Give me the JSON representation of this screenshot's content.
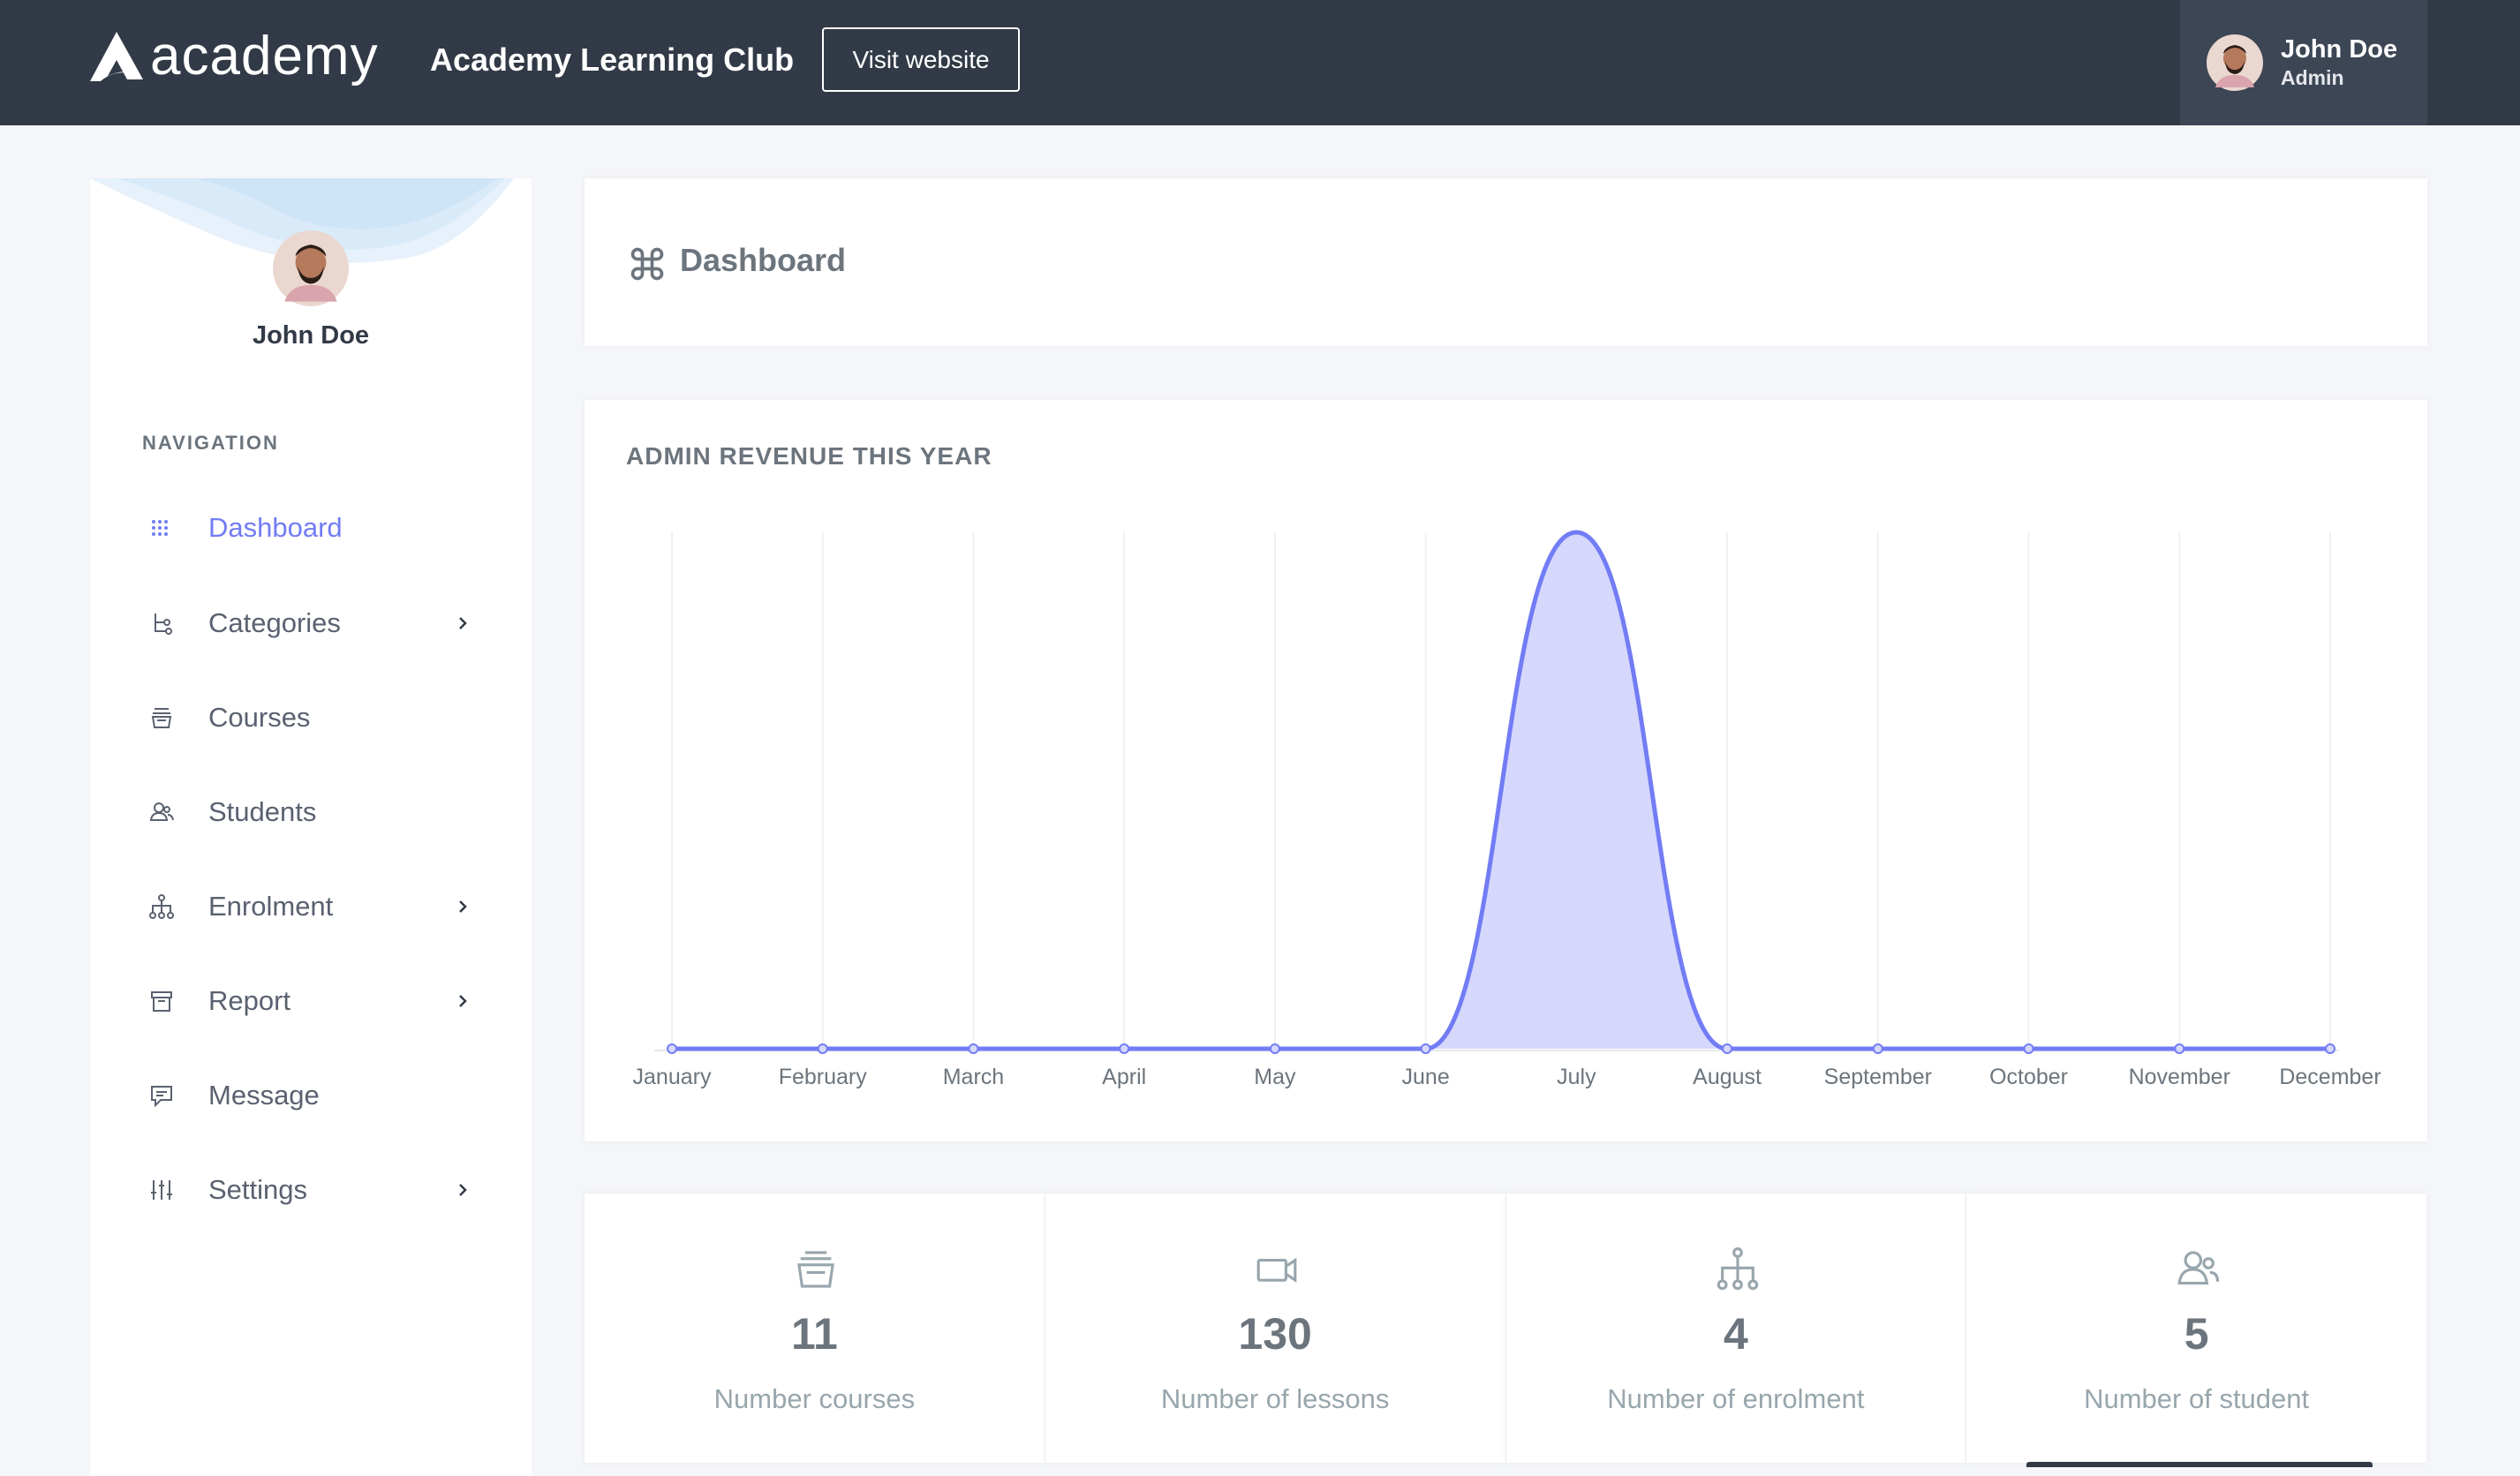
{
  "header": {
    "logo_text": "academy",
    "site_name": "Academy Learning Club",
    "visit_button": "Visit website",
    "user": {
      "name": "John Doe",
      "role": "Admin"
    }
  },
  "sidebar": {
    "user_name": "John Doe",
    "nav_title": "NAVIGATION",
    "items": [
      {
        "label": "Dashboard",
        "icon": "grid-dots-icon",
        "active": true,
        "has_children": false
      },
      {
        "label": "Categories",
        "icon": "hierarchy-icon",
        "active": false,
        "has_children": true
      },
      {
        "label": "Courses",
        "icon": "archive-icon",
        "active": false,
        "has_children": false
      },
      {
        "label": "Students",
        "icon": "users-icon",
        "active": false,
        "has_children": false
      },
      {
        "label": "Enrolment",
        "icon": "network-icon",
        "active": false,
        "has_children": true
      },
      {
        "label": "Report",
        "icon": "box-icon",
        "active": false,
        "has_children": true
      },
      {
        "label": "Message",
        "icon": "message-icon",
        "active": false,
        "has_children": false
      },
      {
        "label": "Settings",
        "icon": "sliders-icon",
        "active": false,
        "has_children": true
      }
    ]
  },
  "page": {
    "title": "Dashboard",
    "title_icon": "command-icon"
  },
  "chart_card": {
    "heading": "ADMIN REVENUE THIS YEAR"
  },
  "chart_data": {
    "type": "area",
    "title": "ADMIN REVENUE THIS YEAR",
    "categories": [
      "January",
      "February",
      "March",
      "April",
      "May",
      "June",
      "July",
      "August",
      "September",
      "October",
      "November",
      "December"
    ],
    "series": [
      {
        "values": [
          0,
          0,
          0,
          0,
          0,
          0,
          1,
          0,
          0,
          0,
          0,
          0
        ]
      }
    ],
    "grid": true,
    "legend": "none",
    "color": "#727cf5",
    "fill_color": "#d5d8fb"
  },
  "stats": [
    {
      "value": "11",
      "label": "Number courses",
      "icon": "archive-icon"
    },
    {
      "value": "130",
      "label": "Number of lessons",
      "icon": "video-icon"
    },
    {
      "value": "4",
      "label": "Number of enrolment",
      "icon": "network-icon"
    },
    {
      "value": "5",
      "label": "Number of student",
      "icon": "users-icon"
    }
  ],
  "colors": {
    "topbar": "#313a46",
    "accent": "#727cf5",
    "background": "#f5f6fa"
  }
}
